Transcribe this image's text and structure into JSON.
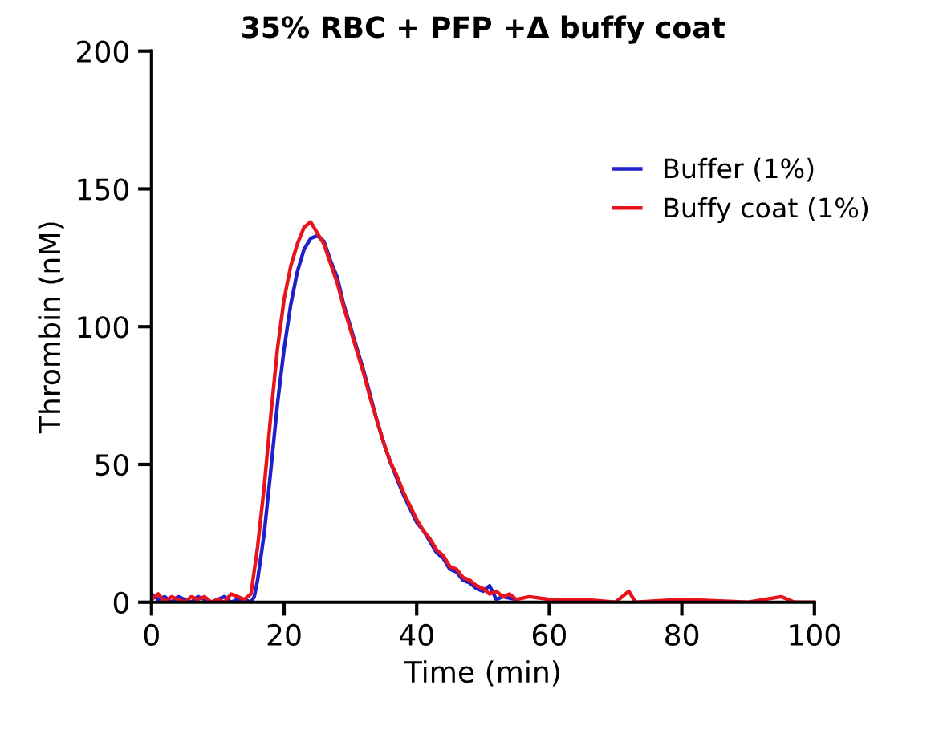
{
  "chart_data": {
    "type": "line",
    "title": "35% RBC + PFP +Δ buffy coat",
    "xlabel": "Time (min)",
    "ylabel": "Thrombin (nM)",
    "xlim": [
      0,
      100
    ],
    "ylim": [
      0,
      200
    ],
    "xticks": [
      0,
      20,
      40,
      60,
      80,
      100
    ],
    "yticks": [
      0,
      50,
      100,
      150,
      200
    ],
    "grid": false,
    "legend": "top right",
    "marker": "none",
    "line_style": "solid",
    "series": [
      {
        "name": "Buffer (1%)",
        "color": "#1f1fcc",
        "x": [
          0,
          1,
          2,
          3,
          4,
          5,
          6,
          7,
          8,
          9,
          10,
          11,
          12,
          13,
          14,
          15,
          15.5,
          16,
          17,
          18,
          19,
          20,
          21,
          22,
          23,
          24,
          25,
          26,
          27,
          28,
          29,
          30,
          31,
          32,
          33,
          34,
          35,
          36,
          37,
          38,
          39,
          40,
          41,
          42,
          43,
          44,
          45,
          46,
          47,
          48,
          49,
          50,
          51,
          52,
          53,
          55
        ],
        "values": [
          3,
          1,
          2,
          0,
          2,
          1,
          0,
          2,
          1,
          0,
          1,
          2,
          0,
          1,
          1,
          0,
          2,
          8,
          25,
          48,
          72,
          92,
          108,
          120,
          128,
          132,
          133,
          131,
          124,
          118,
          108,
          100,
          92,
          84,
          75,
          66,
          58,
          51,
          45,
          39,
          34,
          29,
          26,
          22,
          18,
          16,
          12,
          11,
          8,
          7,
          5,
          4,
          6,
          1,
          2,
          1
        ]
      },
      {
        "name": "Buffy coat (1%)",
        "color": "#e8141b",
        "x": [
          0,
          1,
          2,
          3,
          4,
          5,
          6,
          7,
          8,
          9,
          10,
          11,
          12,
          13,
          14,
          15,
          16,
          17,
          18,
          19,
          20,
          21,
          22,
          23,
          24,
          25,
          26,
          27,
          28,
          29,
          30,
          31,
          32,
          33,
          34,
          35,
          36,
          37,
          38,
          39,
          40,
          41,
          42,
          43,
          44,
          45,
          46,
          47,
          48,
          49,
          50,
          51,
          52,
          53,
          54,
          55,
          57,
          60,
          65,
          70,
          72,
          73,
          80,
          90,
          95,
          97,
          100
        ],
        "values": [
          1,
          3,
          0,
          2,
          1,
          0,
          2,
          1,
          2,
          0,
          1,
          0,
          3,
          2,
          1,
          3,
          20,
          42,
          68,
          92,
          110,
          122,
          130,
          136,
          138,
          134,
          130,
          123,
          116,
          107,
          99,
          91,
          83,
          74,
          66,
          58,
          51,
          46,
          40,
          35,
          30,
          26,
          23,
          19,
          17,
          13,
          12,
          9,
          8,
          6,
          5,
          3,
          4,
          2,
          3,
          1,
          2,
          1,
          1,
          0,
          4,
          0,
          1,
          0,
          2,
          0,
          0
        ]
      }
    ]
  }
}
